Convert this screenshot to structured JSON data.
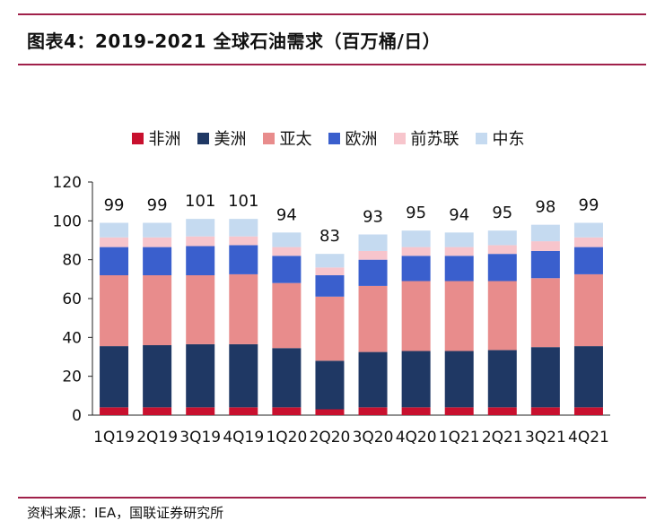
{
  "title": "图表4：2019-2021 全球石油需求（百万桶/日）",
  "source": "资料来源：IEA，国联证券研究所",
  "chart_data": {
    "type": "bar",
    "stacked": true,
    "categories": [
      "1Q19",
      "2Q19",
      "3Q19",
      "4Q19",
      "1Q20",
      "2Q20",
      "3Q20",
      "4Q20",
      "1Q21",
      "2Q21",
      "3Q21",
      "4Q21"
    ],
    "totals": [
      99,
      99,
      101,
      101,
      94,
      83,
      93,
      95,
      94,
      95,
      98,
      99
    ],
    "series": [
      {
        "name": "非洲",
        "color": "#c8102e",
        "values": [
          4,
          4,
          4,
          4,
          4,
          3,
          4,
          4,
          4,
          4,
          4,
          4
        ]
      },
      {
        "name": "美洲",
        "color": "#1f3864",
        "values": [
          31.5,
          32,
          32.5,
          32.5,
          30.5,
          25,
          28.5,
          29,
          29,
          29.5,
          31,
          31.5
        ]
      },
      {
        "name": "亚太",
        "color": "#e88c8c",
        "values": [
          36.5,
          36,
          35.5,
          36,
          33.5,
          33,
          34,
          36,
          36,
          35.5,
          35.5,
          37
        ]
      },
      {
        "name": "欧洲",
        "color": "#3a5fcd",
        "values": [
          14.5,
          14.5,
          15,
          15,
          14,
          11,
          13.5,
          13,
          13,
          14,
          14,
          14
        ]
      },
      {
        "name": "前苏联",
        "color": "#f7c5cc",
        "values": [
          5,
          5,
          5,
          4.5,
          4.5,
          4,
          4.5,
          4.5,
          4.5,
          4.5,
          5,
          5
        ]
      },
      {
        "name": "中东",
        "color": "#c5daf0",
        "values": [
          7.5,
          7.5,
          9,
          9,
          7.5,
          7,
          8.5,
          8.5,
          7.5,
          7.5,
          8.5,
          7.5
        ]
      }
    ],
    "ylim": [
      0,
      120
    ],
    "yticks": [
      0,
      20,
      40,
      60,
      80,
      100,
      120
    ],
    "legend_position": "top",
    "grid": false
  }
}
